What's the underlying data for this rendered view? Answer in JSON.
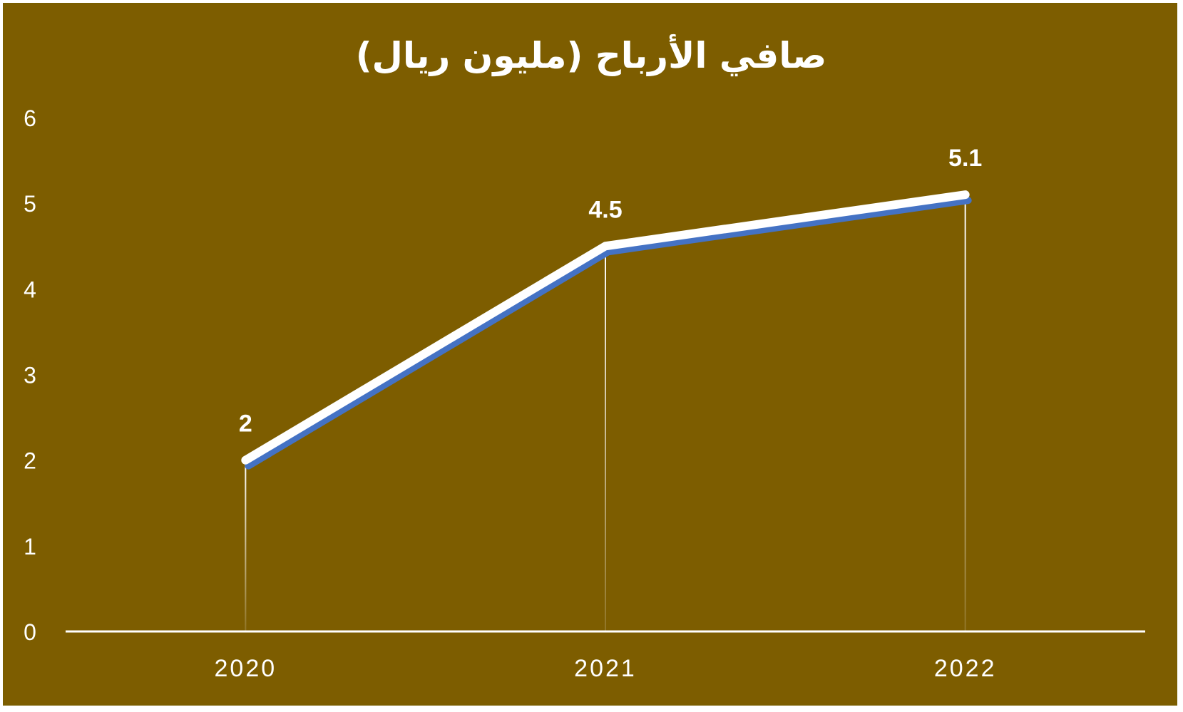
{
  "chart_data": {
    "type": "line",
    "title": "صافي الأرباح (مليون ريال)",
    "categories": [
      "2020",
      "2021",
      "2022"
    ],
    "series": [
      {
        "values": [
          2,
          4.5,
          5.1
        ]
      }
    ],
    "data_labels": [
      "2",
      "4.5",
      "5.1"
    ],
    "y_ticks": [
      "0",
      "1",
      "2",
      "3",
      "4",
      "5",
      "6"
    ],
    "ylim": [
      0,
      6
    ],
    "grid": false,
    "drop_lines": true,
    "colors": {
      "background": "#7d5d00",
      "line": "#ffffff",
      "line_shadow": "#4472c4",
      "text": "#ffffff"
    }
  }
}
